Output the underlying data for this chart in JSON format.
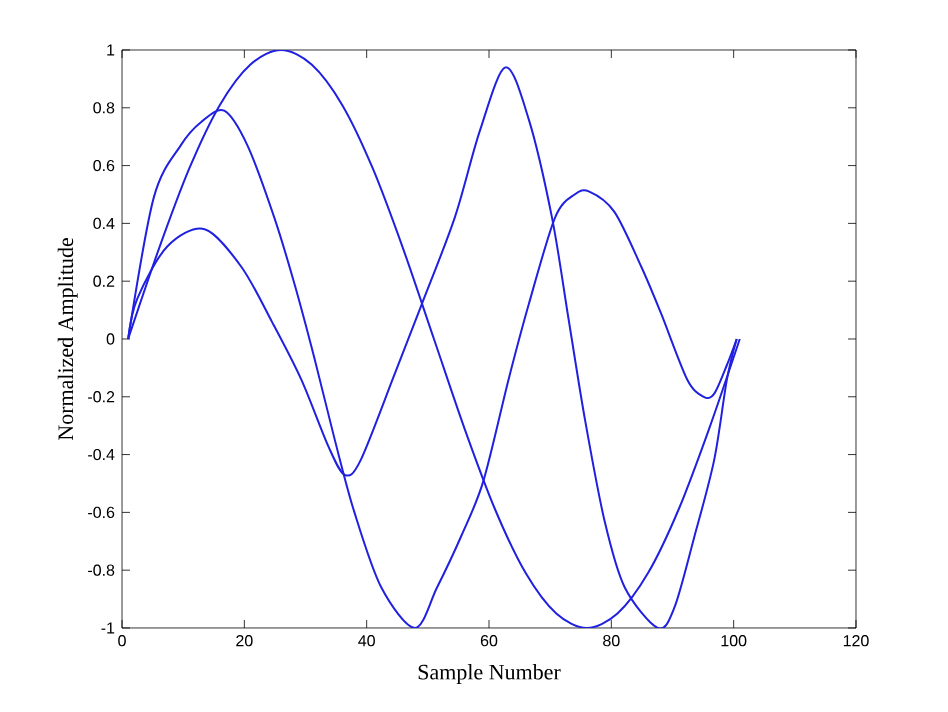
{
  "chart_data": {
    "type": "line",
    "xlabel": "Sample Number",
    "ylabel": "Normalized Amplitude",
    "series": [
      {
        "color": "#2020e0",
        "x": [
          1,
          6,
          11,
          16,
          21,
          26,
          31,
          36,
          41,
          46,
          51,
          56,
          61,
          66,
          71,
          76,
          81,
          86,
          91,
          96,
          101
        ],
        "values": [
          0,
          0.31,
          0.59,
          0.81,
          0.95,
          1.0,
          0.95,
          0.81,
          0.59,
          0.31,
          0,
          -0.31,
          -0.59,
          -0.81,
          -0.95,
          -1.0,
          -0.95,
          -0.81,
          -0.59,
          -0.31,
          0
        ]
      },
      {
        "color": "#2020e0",
        "x": [
          1,
          5.2,
          9.6,
          12.9,
          16.7,
          20.5,
          24.9,
          28.2,
          31.5,
          34.8,
          38,
          42.4,
          47.9,
          51.5,
          55.5,
          59.1,
          63.2,
          66.5,
          70.8,
          74,
          76.4,
          80.5,
          84.9,
          88.1,
          92.4,
          95.1,
          96.8,
          98.9,
          100.5
        ],
        "values": [
          0,
          0.49,
          0.67,
          0.75,
          0.79,
          0.67,
          0.42,
          0.19,
          -0.07,
          -0.35,
          -0.6,
          -0.86,
          -1,
          -0.86,
          -0.68,
          -0.49,
          -0.14,
          0.12,
          0.42,
          0.5,
          0.51,
          0.44,
          0.25,
          0.09,
          -0.14,
          -0.2,
          -0.19,
          -0.09,
          0
        ]
      },
      {
        "color": "#2020e0",
        "x": [
          1,
          2.5,
          7.4,
          13.5,
          19.5,
          24.5,
          29.3,
          33.7,
          36.4,
          39,
          44.6,
          49,
          54.4,
          58.5,
          62.7,
          66.5,
          70.3,
          73,
          75.7,
          78.9,
          82.2,
          87.6,
          90.3,
          93.5,
          96.8,
          98.9,
          100.5
        ],
        "values": [
          0,
          0.14,
          0.32,
          0.38,
          0.25,
          0.06,
          -0.14,
          -0.37,
          -0.47,
          -0.42,
          -0.12,
          0.12,
          0.42,
          0.72,
          0.94,
          0.76,
          0.42,
          0.07,
          -0.28,
          -0.63,
          -0.86,
          -1,
          -0.93,
          -0.69,
          -0.42,
          -0.14,
          0
        ]
      }
    ],
    "xlim": [
      0,
      120
    ],
    "ylim": [
      -1,
      1
    ],
    "xticks": [
      0,
      20,
      40,
      60,
      80,
      100,
      120
    ],
    "yticks": [
      -1,
      -0.8,
      -0.6,
      -0.4,
      -0.2,
      0,
      0.2,
      0.4,
      0.6,
      0.8,
      1
    ],
    "grid": false,
    "marker": "none",
    "line_style": "solid"
  }
}
